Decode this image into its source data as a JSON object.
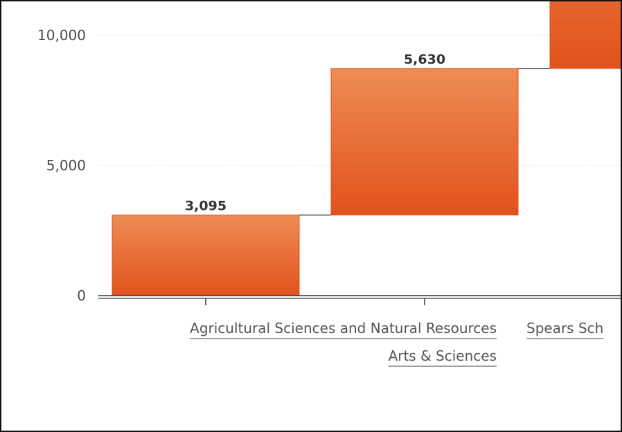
{
  "chart_data": {
    "type": "waterfall",
    "categories": [
      "Agricultural Sciences and Natural Resources",
      "Arts & Sciences",
      "Spears Sch"
    ],
    "values": [
      3095,
      5630,
      null
    ],
    "data_labels": [
      "3,095",
      "5,630",
      ""
    ],
    "y_ticks": [
      0,
      5000,
      10000
    ],
    "y_tick_labels": [
      "0",
      "5,000",
      "10,000"
    ],
    "ylim": [
      0,
      11300
    ],
    "grid": true,
    "colors": {
      "bar_top": "#ee8c55",
      "bar_bottom": "#e2521c",
      "grid": "#e2e2e2",
      "axis": "#333333"
    }
  }
}
